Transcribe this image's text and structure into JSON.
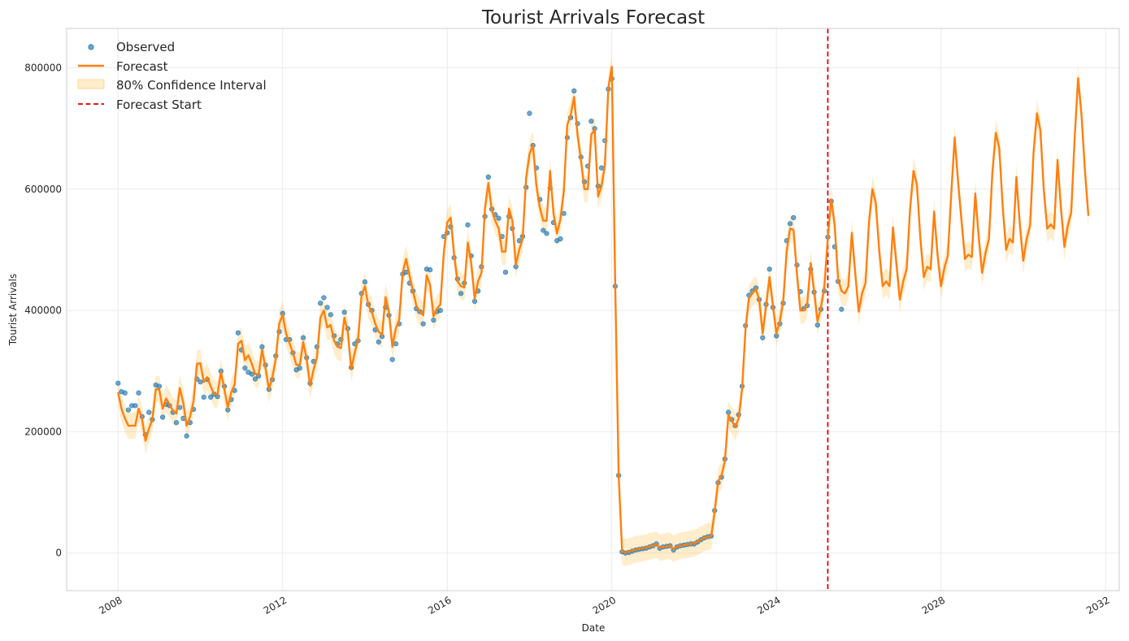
{
  "chart_data": {
    "type": "line",
    "title": "Tourist Arrivals Forecast",
    "xlabel": "Date",
    "ylabel": "Tourist Arrivals",
    "xlim": [
      "2006-10-01",
      "2032-05-01"
    ],
    "ylim": [
      -62000,
      865000
    ],
    "x_ticks": [
      "2008",
      "2012",
      "2016",
      "2020",
      "2024",
      "2028",
      "2032"
    ],
    "y_ticks": [
      0,
      200000,
      400000,
      600000,
      800000
    ],
    "grid": true,
    "legend_position": "top-left",
    "legend": [
      "Observed",
      "Forecast",
      "80% Confidence Interval",
      "Forecast Start"
    ],
    "colors": {
      "observed": "#1f77b4",
      "forecast": "#ff7f0e",
      "interval": "#ffa500",
      "forecast_start": "#e00000",
      "grid": "#ebebeb",
      "frame": "#cccccc"
    },
    "forecast_start": "2025-04-01",
    "observed": {
      "start": "2008-01",
      "values": [
        280000,
        266000,
        264000,
        236000,
        243000,
        243000,
        264000,
        225000,
        195000,
        232000,
        220000,
        277000,
        275000,
        224000,
        245000,
        243000,
        232000,
        215000,
        240000,
        222000,
        193000,
        215000,
        237000,
        287000,
        282000,
        257000,
        286000,
        257000,
        262000,
        258000,
        300000,
        275000,
        236000,
        253000,
        268000,
        363000,
        335000,
        305000,
        298000,
        295000,
        287000,
        292000,
        340000,
        310000,
        270000,
        286000,
        325000,
        365000,
        395000,
        352000,
        352000,
        330000,
        302000,
        305000,
        355000,
        322000,
        280000,
        316000,
        340000,
        412000,
        421000,
        405000,
        393000,
        358000,
        345000,
        352000,
        397000,
        370000,
        306000,
        345000,
        350000,
        428000,
        447000,
        410000,
        400000,
        368000,
        348000,
        357000,
        405000,
        392000,
        319000,
        345000,
        378000,
        460000,
        463000,
        445000,
        432000,
        403000,
        398000,
        378000,
        468000,
        467000,
        384000,
        398000,
        400000,
        522000,
        528000,
        538000,
        487000,
        452000,
        428000,
        445000,
        541000,
        490000,
        415000,
        432000,
        472000,
        555000,
        620000,
        567000,
        558000,
        552000,
        522000,
        463000,
        555000,
        535000,
        472000,
        515000,
        522000,
        603000,
        725000,
        672000,
        635000,
        583000,
        532000,
        527000,
        602000,
        545000,
        515000,
        518000,
        560000,
        685000,
        718000,
        762000,
        708000,
        653000,
        612000,
        638000,
        712000,
        700000,
        605000,
        635000,
        680000,
        765000,
        782000,
        440000,
        128000,
        2000,
        0,
        1000,
        3000,
        5000,
        6000,
        7000,
        8000,
        10000,
        12000,
        15000,
        8000,
        10000,
        11000,
        12000,
        5000,
        10000,
        12000,
        13000,
        14000,
        15000,
        15000,
        18000,
        22000,
        25000,
        27000,
        28000,
        70000,
        116000,
        125000,
        155000,
        232000,
        220000,
        210000,
        228000,
        275000,
        375000,
        425000,
        432000,
        437000,
        418000,
        355000,
        410000,
        468000,
        405000,
        358000,
        378000,
        412000,
        515000,
        543000,
        553000,
        475000,
        431000,
        403000,
        408000,
        468000,
        430000,
        376000,
        402000,
        432000,
        521000,
        580000,
        505000,
        448000,
        402000
      ]
    },
    "forecast": {
      "start": "2008-01",
      "values": [
        265000,
        238000,
        222000,
        210000,
        210000,
        210000,
        238000,
        220000,
        185000,
        205000,
        220000,
        270000,
        270000,
        238000,
        255000,
        245000,
        235000,
        230000,
        272000,
        248000,
        210000,
        225000,
        250000,
        312000,
        313000,
        282000,
        290000,
        275000,
        262000,
        262000,
        298000,
        270000,
        240000,
        265000,
        278000,
        345000,
        350000,
        318000,
        326000,
        312000,
        295000,
        295000,
        335000,
        305000,
        270000,
        290000,
        320000,
        378000,
        393000,
        362000,
        346000,
        330000,
        310000,
        310000,
        348000,
        320000,
        276000,
        302000,
        322000,
        388000,
        400000,
        372000,
        376000,
        350000,
        340000,
        338000,
        388000,
        365000,
        303000,
        330000,
        352000,
        425000,
        440000,
        408000,
        398000,
        378000,
        365000,
        360000,
        422000,
        398000,
        340000,
        370000,
        385000,
        462000,
        485000,
        458000,
        432000,
        408000,
        398000,
        392000,
        458000,
        442000,
        390000,
        403000,
        410000,
        495000,
        545000,
        553000,
        492000,
        448000,
        440000,
        438000,
        512000,
        478000,
        420000,
        448000,
        462000,
        568000,
        610000,
        565000,
        548000,
        535000,
        497000,
        497000,
        568000,
        548000,
        475000,
        500000,
        518000,
        618000,
        658000,
        673000,
        606000,
        570000,
        548000,
        548000,
        630000,
        560000,
        527000,
        550000,
        596000,
        706000,
        722000,
        752000,
        690000,
        648000,
        600000,
        600000,
        690000,
        698000,
        588000,
        605000,
        640000,
        768000,
        802000,
        440000,
        128000,
        3000,
        1000,
        2000,
        4000,
        6000,
        7000,
        8000,
        9000,
        11000,
        12000,
        14000,
        9000,
        10000,
        11000,
        12000,
        7000,
        10000,
        12000,
        13000,
        14000,
        15000,
        16000,
        19000,
        22000,
        25000,
        27000,
        28000,
        68000,
        118000,
        128000,
        152000,
        228000,
        218000,
        208000,
        222000,
        270000,
        370000,
        420000,
        428000,
        435000,
        418000,
        362000,
        408000,
        455000,
        408000,
        362000,
        382000,
        415000,
        498000,
        535000,
        533000,
        460000,
        400000,
        400000,
        410000,
        478000,
        432000,
        382000,
        405000,
        440000,
        520000,
        583000,
        541000,
        452000,
        432000,
        428000,
        440000,
        528000,
        462000,
        398000,
        428000,
        445000,
        545000,
        600000,
        577000,
        498000,
        440000,
        448000,
        440000,
        537000,
        478000,
        418000,
        448000,
        468000,
        568000,
        630000,
        607000,
        518000,
        455000,
        472000,
        468000,
        563000,
        492000,
        440000,
        470000,
        490000,
        592000,
        685000,
        612000,
        548000,
        485000,
        492000,
        488000,
        593000,
        522000,
        462000,
        495000,
        518000,
        628000,
        693000,
        668000,
        572000,
        500000,
        518000,
        512000,
        620000,
        542000,
        482000,
        518000,
        540000,
        660000,
        725000,
        697000,
        598000,
        535000,
        542000,
        535000,
        648000,
        568000,
        505000,
        540000,
        562000,
        685000,
        783000,
        722000,
        630000,
        556000
      ],
      "interval_halfwidth": 22000
    }
  }
}
